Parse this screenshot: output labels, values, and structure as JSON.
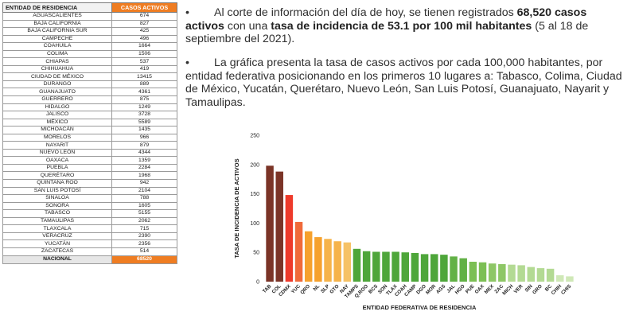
{
  "table": {
    "header_state": "ENTIDAD DE RESIDENCIA",
    "header_cases": "CASOS ACTIVOS",
    "rows": [
      {
        "state": "AGUASCALIENTES",
        "cases": "674"
      },
      {
        "state": "BAJA CALIFORNIA",
        "cases": "827"
      },
      {
        "state": "BAJA CALIFORNIA SUR",
        "cases": "425"
      },
      {
        "state": "CAMPECHE",
        "cases": "496"
      },
      {
        "state": "COAHUILA",
        "cases": "1664"
      },
      {
        "state": "COLIMA",
        "cases": "1506"
      },
      {
        "state": "CHIAPAS",
        "cases": "537"
      },
      {
        "state": "CHIHUAHUA",
        "cases": "419"
      },
      {
        "state": "CIUDAD DE MÉXICO",
        "cases": "13415"
      },
      {
        "state": "DURANGO",
        "cases": "889"
      },
      {
        "state": "GUANAJUATO",
        "cases": "4361"
      },
      {
        "state": "GUERRERO",
        "cases": "875"
      },
      {
        "state": "HIDALGO",
        "cases": "1249"
      },
      {
        "state": "JALISCO",
        "cases": "3728"
      },
      {
        "state": "MÉXICO",
        "cases": "5589"
      },
      {
        "state": "MICHOACÁN",
        "cases": "1435"
      },
      {
        "state": "MORELOS",
        "cases": "966"
      },
      {
        "state": "NAYARIT",
        "cases": "879"
      },
      {
        "state": "NUEVO LEÓN",
        "cases": "4344"
      },
      {
        "state": "OAXACA",
        "cases": "1359"
      },
      {
        "state": "PUEBLA",
        "cases": "2284"
      },
      {
        "state": "QUERÉTARO",
        "cases": "1968"
      },
      {
        "state": "QUINTANA ROO",
        "cases": "942"
      },
      {
        "state": "SAN LUIS POTOSÍ",
        "cases": "2104"
      },
      {
        "state": "SINALOA",
        "cases": "788"
      },
      {
        "state": "SONORA",
        "cases": "1605"
      },
      {
        "state": "TABASCO",
        "cases": "5155"
      },
      {
        "state": "TAMAULIPAS",
        "cases": "2062"
      },
      {
        "state": "TLAXCALA",
        "cases": "715"
      },
      {
        "state": "VERACRUZ",
        "cases": "2390"
      },
      {
        "state": "YUCATÁN",
        "cases": "2356"
      },
      {
        "state": "ZACATECAS",
        "cases": "514"
      }
    ],
    "total_label": "NACIONAL",
    "total_value": "68520"
  },
  "text": {
    "p1_a": "Al corte de información del día de hoy, se tienen registrados ",
    "p1_b": "68,520 casos activos",
    "p1_c": " con una ",
    "p1_d": "tasa de incidencia de 53.1 por 100 mil habitantes",
    "p1_e": " (5 al 18 de septiembre del 2021).",
    "p2": "La gráfica presenta la tasa de casos activos por cada 100,000 habitantes, por entidad federativa posicionando en los primeros 10 lugares a: Tabasco, Colima, Ciudad de México, Yucatán, Querétaro, Nuevo León, San Luis Potosí, Guanajuato, Nayarit y Tamaulipas.",
    "bullet": "•"
  },
  "chart_data": {
    "type": "bar",
    "xlabel": "ENTIDAD FEDERATIVA DE RESIDENCIA",
    "ylabel": "TASA DE INCIDENCIA DE ACTIVOS",
    "ylim": [
      0,
      250
    ],
    "yticks": [
      0,
      50,
      100,
      150,
      200,
      250
    ],
    "grid": false,
    "categories": [
      "TAB",
      "COL",
      "CDMX",
      "YUC",
      "QRO",
      "NL",
      "SLP",
      "GTO",
      "NAY",
      "TAMPS",
      "Q.ROO",
      "BCS",
      "SON",
      "TLAX",
      "COAH",
      "CAMP",
      "DGO",
      "MOR",
      "AGS",
      "JAL",
      "HGO",
      "PUE",
      "OAX",
      "MEX",
      "ZAC",
      "MICH",
      "VER",
      "SIN",
      "GRO",
      "BC",
      "CHIH",
      "CHIS"
    ],
    "values": [
      198,
      188,
      148,
      102,
      86,
      76,
      73,
      69,
      67,
      56,
      52,
      51,
      51,
      51,
      50,
      49,
      47,
      47,
      46,
      43,
      40,
      34,
      33,
      31,
      30,
      29,
      28,
      25,
      23,
      22,
      11,
      9
    ],
    "colors": [
      "#7b3427",
      "#7b3427",
      "#ee3a2b",
      "#f06a3a",
      "#f6a12d",
      "#f6a12d",
      "#f6b34a",
      "#f6b34a",
      "#f6c266",
      "#4ea63a",
      "#4ea63a",
      "#4ea63a",
      "#4ea63a",
      "#4ea63a",
      "#4ea63a",
      "#4ea63a",
      "#4ea63a",
      "#4ea63a",
      "#4ea63a",
      "#62b146",
      "#62b146",
      "#7cbf54",
      "#7cbf54",
      "#8ec766",
      "#8ec766",
      "#b3da93",
      "#b3da93",
      "#b3da93",
      "#b3da93",
      "#b3da93",
      "#cfe8b7",
      "#cfe8b7"
    ]
  }
}
